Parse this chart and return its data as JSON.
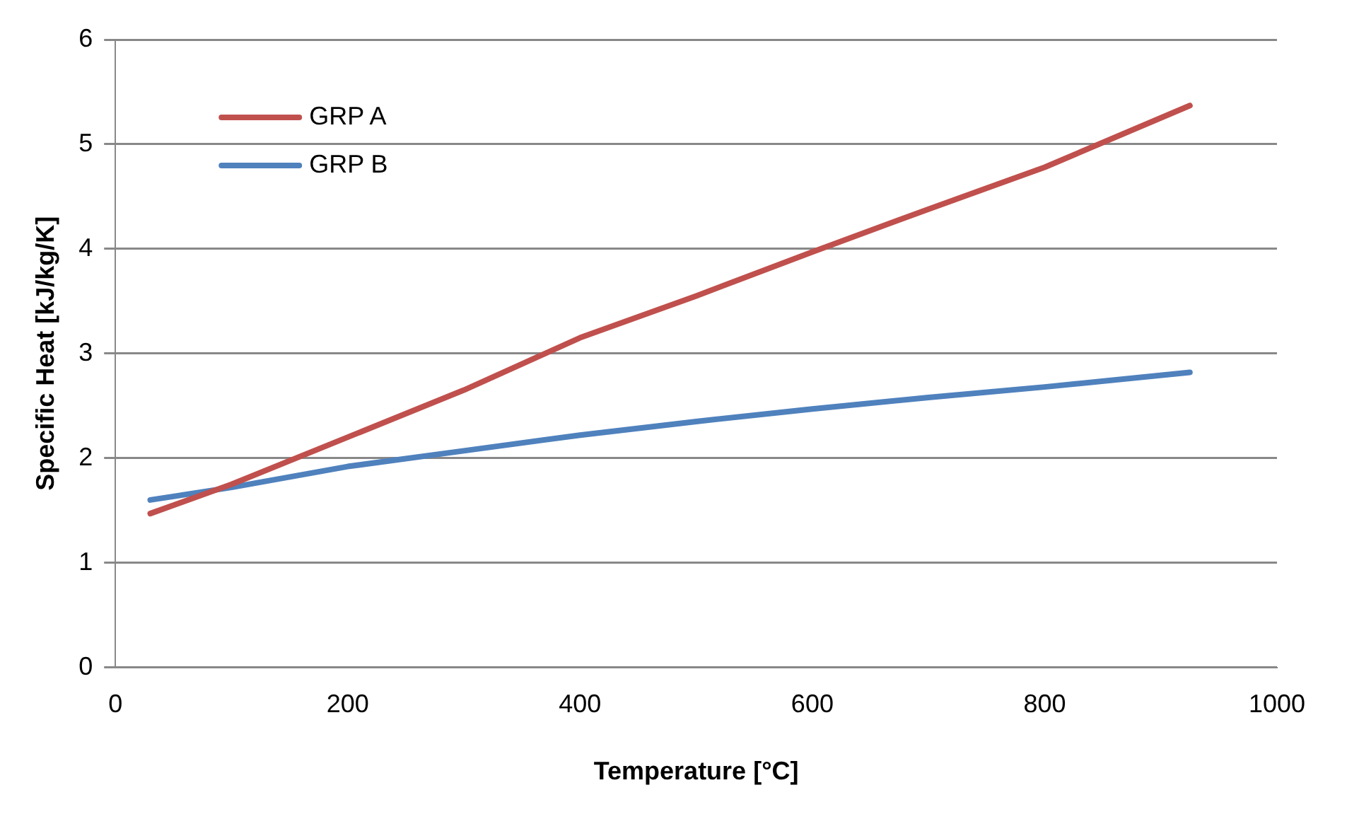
{
  "chart_data": {
    "type": "line",
    "xlabel": "Temperature [°C]",
    "ylabel": "Specific Heat [kJ/kg/K]",
    "xlim": [
      0,
      1000
    ],
    "xticks": [
      0,
      200,
      400,
      600,
      800,
      1000
    ],
    "ylim": [
      0,
      6
    ],
    "yticks": [
      0,
      1,
      2,
      3,
      4,
      5,
      6
    ],
    "grid": "y",
    "legend": "top left",
    "marker": "none",
    "line_style": "solid",
    "series": [
      {
        "name": "GRP A",
        "color": "#c0504d",
        "x": [
          30,
          100,
          200,
          300,
          400,
          500,
          600,
          700,
          800,
          925
        ],
        "values": [
          1.47,
          1.75,
          2.2,
          2.65,
          3.15,
          3.55,
          3.97,
          4.38,
          4.78,
          5.37
        ]
      },
      {
        "name": "GRP B",
        "color": "#4f81bd",
        "x": [
          30,
          100,
          150,
          200,
          300,
          400,
          500,
          600,
          700,
          800,
          925
        ],
        "values": [
          1.6,
          1.72,
          1.82,
          1.92,
          2.07,
          2.22,
          2.35,
          2.47,
          2.58,
          2.68,
          2.82
        ]
      }
    ]
  }
}
